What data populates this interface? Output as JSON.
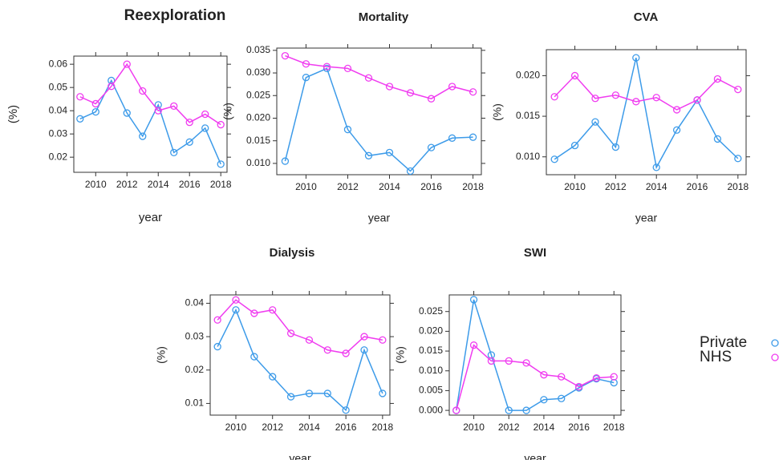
{
  "chart_data": [
    {
      "type": "line",
      "title": "Reexploration",
      "xlabel": "year",
      "ylabel": "(%)",
      "x": [
        2009,
        2010,
        2011,
        2012,
        2013,
        2014,
        2015,
        2016,
        2017,
        2018
      ],
      "xlim": [
        2008.6,
        2018.4
      ],
      "xticks": [
        2010,
        2012,
        2014,
        2016,
        2018
      ],
      "ylim": [
        0.0135,
        0.0635
      ],
      "yticks": [
        0.02,
        0.03,
        0.04,
        0.05,
        0.06
      ],
      "series": [
        {
          "name": "Private",
          "color": "#3d9be9",
          "values": [
            0.0365,
            0.0395,
            0.053,
            0.039,
            0.029,
            0.0425,
            0.022,
            0.0265,
            0.0325,
            0.017
          ]
        },
        {
          "name": "NHS",
          "color": "#f03cf0",
          "values": [
            0.046,
            0.043,
            0.0505,
            0.06,
            0.0485,
            0.04,
            0.042,
            0.035,
            0.0385,
            0.034
          ]
        }
      ]
    },
    {
      "type": "line",
      "title": "Mortality",
      "xlabel": "year",
      "ylabel": "(%)",
      "x": [
        2009,
        2010,
        2011,
        2012,
        2013,
        2014,
        2015,
        2016,
        2017,
        2018
      ],
      "xlim": [
        2008.6,
        2018.4
      ],
      "xticks": [
        2010,
        2012,
        2014,
        2016,
        2018
      ],
      "ylim": [
        0.0075,
        0.0355
      ],
      "yticks": [
        {
          "value": 0.01,
          "label": "0.010"
        },
        {
          "value": 0.015,
          "label": "0.015"
        },
        {
          "value": 0.02,
          "label": "0.020"
        },
        {
          "value": 0.025,
          "label": "0.025"
        },
        {
          "value": 0.03,
          "label": "0.030"
        },
        {
          "value": 0.035,
          "label": "0.035"
        }
      ],
      "series": [
        {
          "color": "#3d9be9",
          "values": [
            0.0105,
            0.029,
            0.031,
            0.0175,
            0.0117,
            0.0124,
            0.0083,
            0.0135,
            0.0156,
            0.0158
          ]
        },
        {
          "color": "#f03cf0",
          "values": [
            0.0338,
            0.032,
            0.0314,
            0.031,
            0.0289,
            0.027,
            0.0256,
            0.0243,
            0.027,
            0.0258
          ]
        }
      ]
    },
    {
      "type": "line",
      "title": "CVA",
      "xlabel": "year",
      "ylabel": "(%)",
      "x": [
        2009,
        2010,
        2011,
        2012,
        2013,
        2014,
        2015,
        2016,
        2017,
        2018
      ],
      "xlim": [
        2008.6,
        2018.4
      ],
      "xticks": [
        2010,
        2012,
        2014,
        2016,
        2018
      ],
      "ylim": [
        0.0078,
        0.0232
      ],
      "yticks": [
        {
          "value": 0.01,
          "label": "0.010"
        },
        {
          "value": 0.015,
          "label": "0.015"
        },
        {
          "value": 0.02,
          "label": "0.020"
        }
      ],
      "series": [
        {
          "color": "#3d9be9",
          "values": [
            0.0097,
            0.0114,
            0.0143,
            0.0112,
            0.0222,
            0.0087,
            0.0133,
            0.017,
            0.0122,
            0.0098
          ]
        },
        {
          "color": "#f03cf0",
          "values": [
            0.0174,
            0.02,
            0.0172,
            0.0176,
            0.0168,
            0.0173,
            0.0158,
            0.017,
            0.0196,
            0.0183
          ]
        }
      ]
    },
    {
      "type": "line",
      "title": "Dialysis",
      "xlabel": "year",
      "ylabel": "(%)",
      "x": [
        2009,
        2010,
        2011,
        2012,
        2013,
        2014,
        2015,
        2016,
        2017,
        2018
      ],
      "xlim": [
        2008.6,
        2018.4
      ],
      "xticks": [
        2010,
        2012,
        2014,
        2016,
        2018
      ],
      "ylim": [
        0.0065,
        0.0425
      ],
      "yticks": [
        0.01,
        0.02,
        0.03,
        0.04
      ],
      "series": [
        {
          "color": "#3d9be9",
          "values": [
            0.027,
            0.038,
            0.024,
            0.018,
            0.012,
            0.013,
            0.013,
            0.008,
            0.026,
            0.013
          ]
        },
        {
          "color": "#f03cf0",
          "values": [
            0.035,
            0.041,
            0.037,
            0.038,
            0.031,
            0.029,
            0.026,
            0.025,
            0.03,
            0.029
          ]
        }
      ]
    },
    {
      "type": "line",
      "title": "SWI",
      "xlabel": "year",
      "ylabel": "(%)",
      "x": [
        2009,
        2010,
        2011,
        2012,
        2013,
        2014,
        2015,
        2016,
        2017,
        2018
      ],
      "xlim": [
        2008.6,
        2018.4
      ],
      "xticks": [
        2010,
        2012,
        2014,
        2016,
        2018
      ],
      "ylim": [
        -0.0012,
        0.0292
      ],
      "yticks": [
        {
          "value": 0,
          "label": "0.000"
        },
        {
          "value": 0.005,
          "label": "0.005"
        },
        {
          "value": 0.01,
          "label": "0.010"
        },
        {
          "value": 0.015,
          "label": "0.015"
        },
        {
          "value": 0.02,
          "label": "0.020"
        },
        {
          "value": 0.025,
          "label": "0.025"
        }
      ],
      "series": [
        {
          "color": "#3d9be9",
          "values": [
            0,
            0.028,
            0.014,
            0,
            0,
            0.0027,
            0.003,
            0.0057,
            0.008,
            0.007
          ]
        },
        {
          "color": "#f03cf0",
          "values": [
            0,
            0.0165,
            0.0125,
            0.0125,
            0.012,
            0.009,
            0.0085,
            0.006,
            0.0082,
            0.0085
          ]
        }
      ]
    }
  ]
}
